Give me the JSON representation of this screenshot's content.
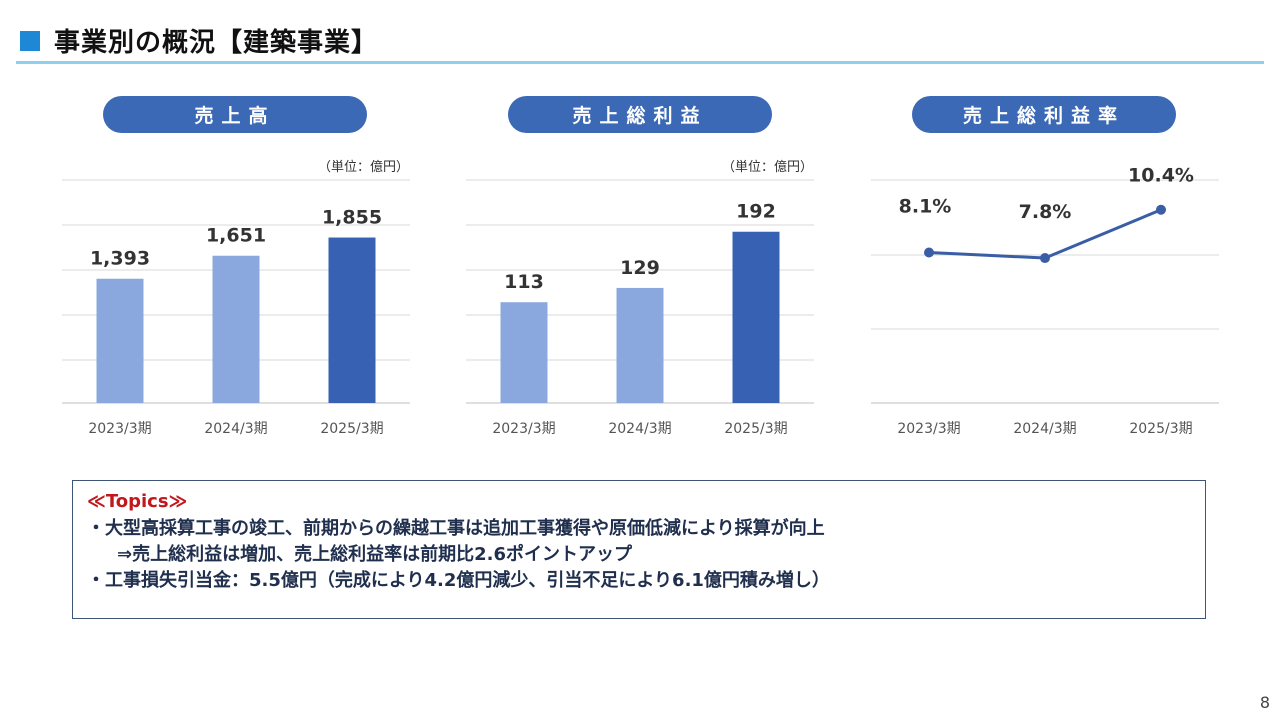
{
  "header": {
    "title": "事業別の概況【建築事業】"
  },
  "page_number": "8",
  "panels": [
    {
      "label": "売上高",
      "unit": "（単位：億円）"
    },
    {
      "label": "売上総利益",
      "unit": "（単位：億円）"
    },
    {
      "label": "売上総利益率",
      "unit": ""
    }
  ],
  "colors": {
    "accent": "#1e88d6",
    "bar_light": "#8aa8dd",
    "bar_dark": "#3762b3",
    "line": "#3a5ea6",
    "pill": "#3b69b5"
  },
  "chart_data": [
    {
      "type": "bar",
      "title": "売上高",
      "categories": [
        "2023/3期",
        "2024/3期",
        "2025/3期"
      ],
      "values": [
        1393,
        1651,
        1855
      ],
      "value_labels": [
        "1,393",
        "1,651",
        "1,855"
      ],
      "ylim": [
        0,
        2500
      ],
      "grid": true
    },
    {
      "type": "bar",
      "title": "売上総利益",
      "categories": [
        "2023/3期",
        "2024/3期",
        "2025/3期"
      ],
      "values": [
        113,
        129,
        192
      ],
      "value_labels": [
        "113",
        "129",
        "192"
      ],
      "ylim": [
        0,
        250
      ],
      "grid": true
    },
    {
      "type": "line",
      "title": "売上総利益率",
      "categories": [
        "2023/3期",
        "2024/3期",
        "2025/3期"
      ],
      "values": [
        8.1,
        7.8,
        10.4
      ],
      "value_labels": [
        "8.1%",
        "7.8%",
        "10.4%"
      ],
      "ylim": [
        0,
        12
      ],
      "grid": true
    }
  ],
  "topics": {
    "heading": "≪Topics≫",
    "lines": [
      "・大型高採算工事の竣工、前期からの繰越工事は追加工事獲得や原価低減により採算が向上",
      "⇒売上総利益は増加、売上総利益率は前期比2.6ポイントアップ",
      "・工事損失引当金：5.5億円（完成により4.2億円減少、引当不足により6.1億円積み増し）"
    ]
  }
}
